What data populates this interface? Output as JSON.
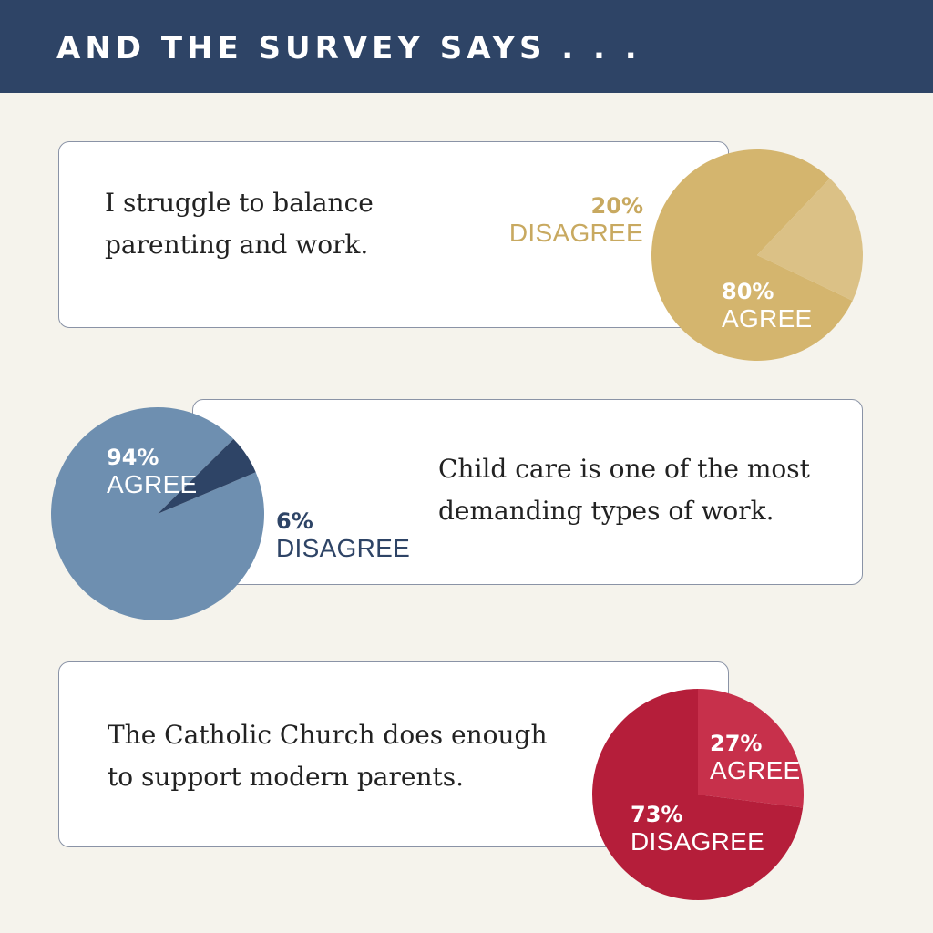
{
  "header": {
    "title": "AND THE SURVEY SAYS . . ."
  },
  "colors": {
    "header_bg": "#2e4466",
    "page_bg": "#f5f3ec",
    "gold": "#d4b56e",
    "gold_light": "#dbc186",
    "steel": "#6e8fb0",
    "navy": "#2e4466",
    "crimson": "#b51e3a",
    "crimson_light": "#c7304b"
  },
  "chart_data": [
    {
      "type": "pie",
      "title": "I struggle to balance parenting and work.",
      "title_lines": [
        "I struggle to balance",
        "parenting and work."
      ],
      "slices": [
        {
          "pct_label": "80%",
          "word_label": "AGREE",
          "value": 80,
          "color": "#d4b56e"
        },
        {
          "pct_label": "20%",
          "word_label": "DISAGREE",
          "value": 20,
          "color": "#dbc186"
        }
      ]
    },
    {
      "type": "pie",
      "title": "Child care is one of the most demanding types of work.",
      "title_lines": [
        "Child care is one of the most",
        "demanding types of work."
      ],
      "slices": [
        {
          "pct_label": "94%",
          "word_label": "AGREE",
          "value": 94,
          "color": "#6e8fb0"
        },
        {
          "pct_label": "6%",
          "word_label": "DISAGREE",
          "value": 6,
          "color": "#2e4466"
        }
      ]
    },
    {
      "type": "pie",
      "title": "The Catholic Church does enough to support modern parents.",
      "title_lines": [
        "The Catholic Church does enough",
        "to support modern parents."
      ],
      "slices": [
        {
          "pct_label": "27%",
          "word_label": "AGREE",
          "value": 27,
          "color": "#c7304b"
        },
        {
          "pct_label": "73%",
          "word_label": "DISAGREE",
          "value": 73,
          "color": "#b51e3a"
        }
      ]
    }
  ]
}
